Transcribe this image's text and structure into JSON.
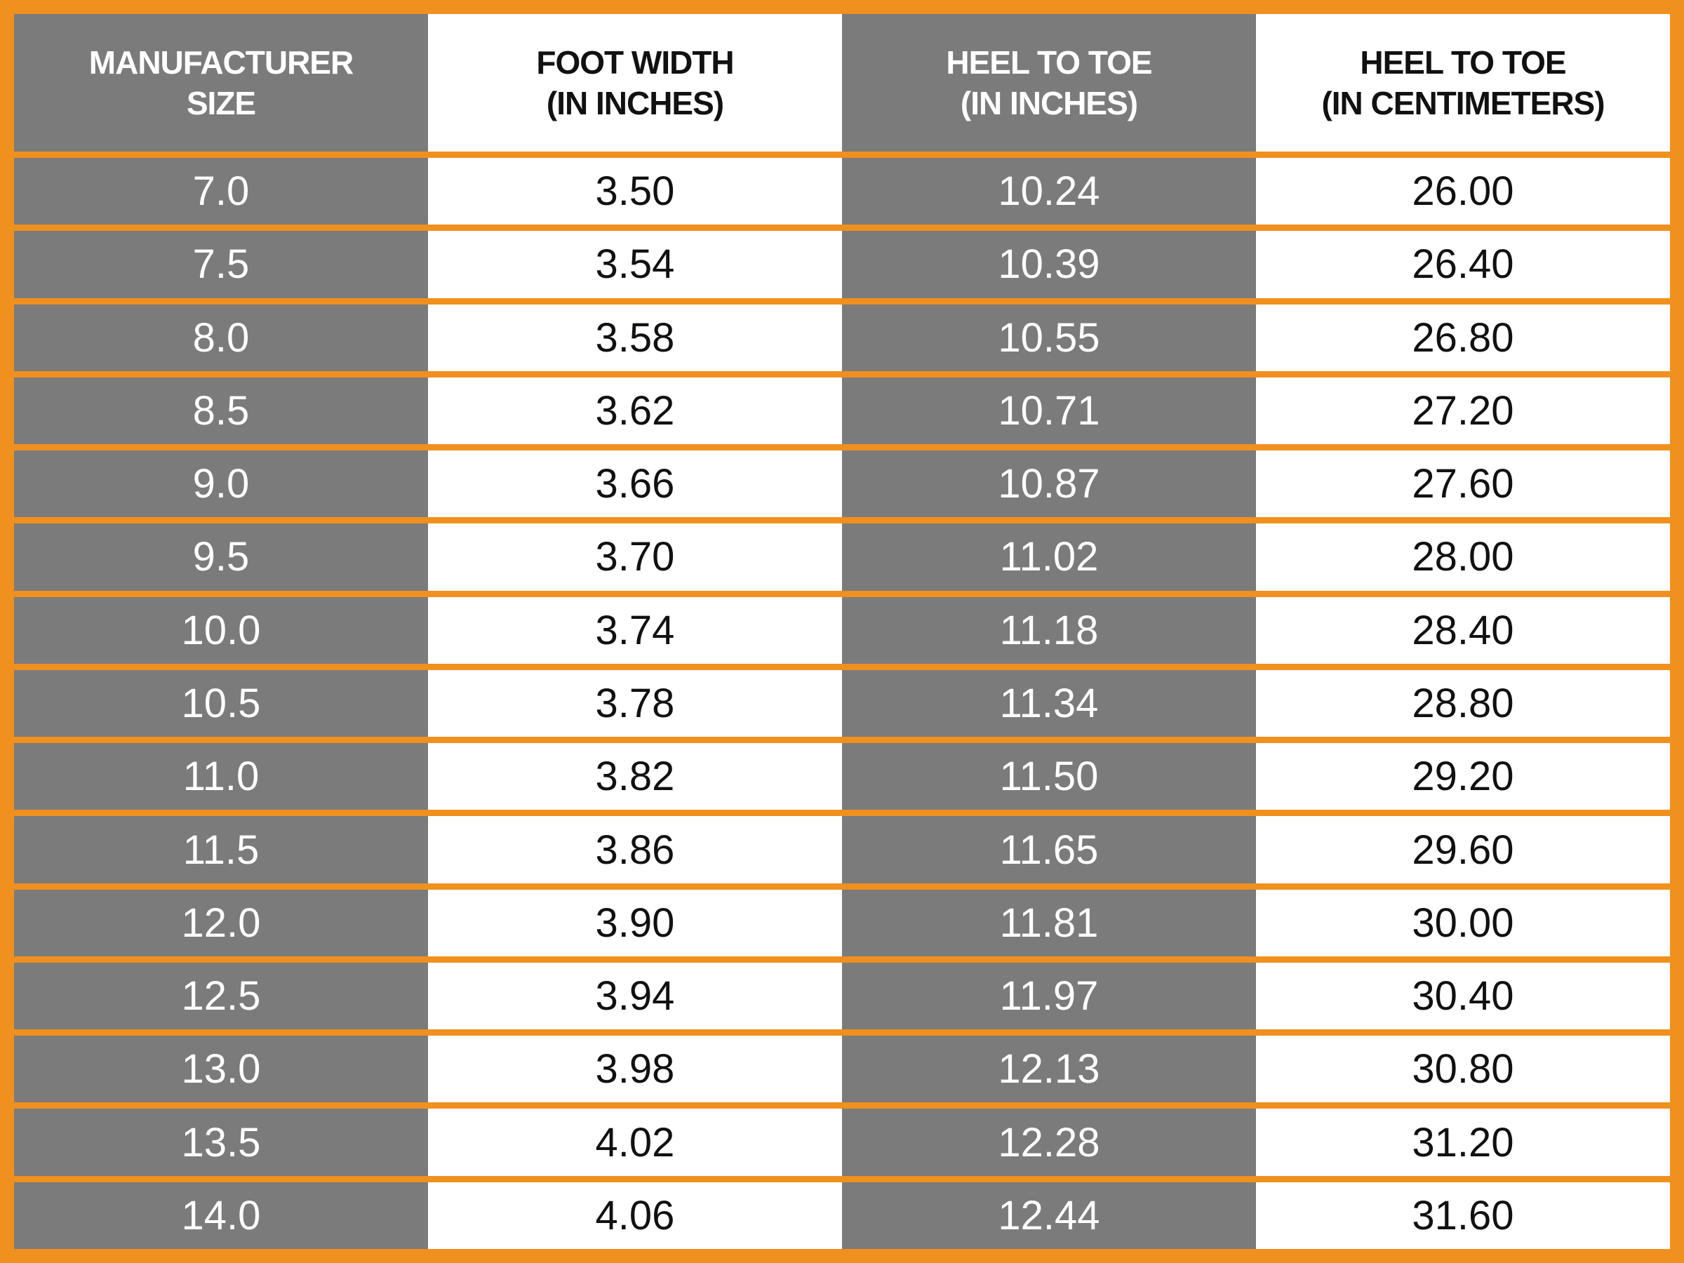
{
  "table": {
    "header": [
      [
        "MANUFACTURER",
        "SIZE"
      ],
      [
        "FOOT WIDTH",
        "(IN INCHES)"
      ],
      [
        "HEEL TO TOE",
        "(IN INCHES)"
      ],
      [
        "HEEL TO TOE",
        "(IN CENTIMETERS)"
      ]
    ],
    "rows": [
      [
        "7.0",
        "3.50",
        "10.24",
        "26.00"
      ],
      [
        "7.5",
        "3.54",
        "10.39",
        "26.40"
      ],
      [
        "8.0",
        "3.58",
        "10.55",
        "26.80"
      ],
      [
        "8.5",
        "3.62",
        "10.71",
        "27.20"
      ],
      [
        "9.0",
        "3.66",
        "10.87",
        "27.60"
      ],
      [
        "9.5",
        "3.70",
        "11.02",
        "28.00"
      ],
      [
        "10.0",
        "3.74",
        "11.18",
        "28.40"
      ],
      [
        "10.5",
        "3.78",
        "11.34",
        "28.80"
      ],
      [
        "11.0",
        "3.82",
        "11.50",
        "29.20"
      ],
      [
        "11.5",
        "3.86",
        "11.65",
        "29.60"
      ],
      [
        "12.0",
        "3.90",
        "11.81",
        "30.00"
      ],
      [
        "12.5",
        "3.94",
        "11.97",
        "30.40"
      ],
      [
        "13.0",
        "3.98",
        "12.13",
        "30.80"
      ],
      [
        "13.5",
        "4.02",
        "12.28",
        "31.20"
      ],
      [
        "14.0",
        "4.06",
        "12.44",
        "31.60"
      ]
    ]
  }
}
